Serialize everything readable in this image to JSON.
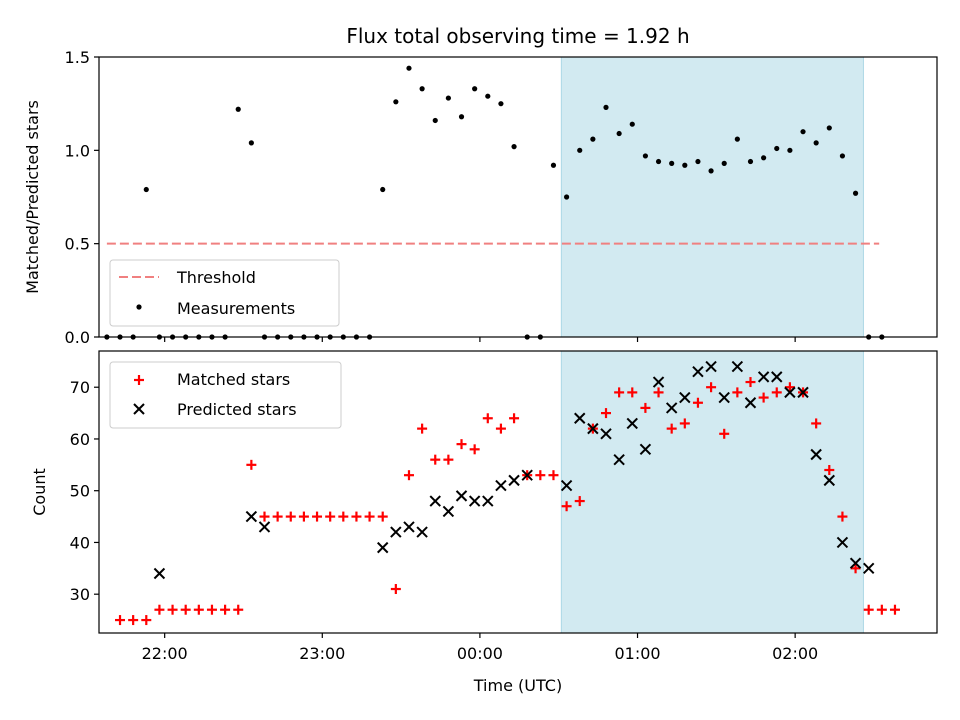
{
  "chart_data": {
    "type": "scatter",
    "title": "Flux total observing time = 1.92 h",
    "xlabel": "Time (UTC)",
    "x_ticks": [
      "22:00",
      "23:00",
      "00:00",
      "01:00",
      "02:00"
    ],
    "highlight_span": {
      "start": "00:31",
      "end": "02:26",
      "color": "#add8e6"
    },
    "panels": [
      {
        "ylabel": "Matched/Predicted stars",
        "ylim": [
          0,
          1.5
        ],
        "y_ticks": [
          "0.0",
          "0.5",
          "1.0",
          "1.5"
        ],
        "threshold": {
          "name": "Threshold",
          "value": 0.5,
          "start": "21:38",
          "end": "02:32",
          "color": "#f08080"
        },
        "legend_position": "lower-left",
        "series": [
          {
            "name": "Measurements",
            "color": "#000000",
            "marker": "dot",
            "x": [
              "21:38",
              "21:43",
              "21:48",
              "21:53",
              "21:58",
              "22:03",
              "22:08",
              "22:13",
              "22:18",
              "22:23",
              "22:28",
              "22:33",
              "22:38",
              "22:43",
              "22:48",
              "22:53",
              "22:58",
              "23:03",
              "23:08",
              "23:13",
              "23:18",
              "23:23",
              "23:28",
              "23:33",
              "23:38",
              "23:43",
              "23:48",
              "23:53",
              "23:58",
              "00:03",
              "00:08",
              "00:13",
              "00:18",
              "00:23",
              "00:28",
              "00:33",
              "00:38",
              "00:43",
              "00:48",
              "00:53",
              "00:58",
              "01:03",
              "01:08",
              "01:13",
              "01:18",
              "01:23",
              "01:28",
              "01:33",
              "01:38",
              "01:43",
              "01:48",
              "01:53",
              "01:58",
              "02:03",
              "02:08",
              "02:13",
              "02:18",
              "02:23",
              "02:28",
              "02:33"
            ],
            "y": [
              0,
              0,
              0,
              0.79,
              0,
              0,
              0,
              0,
              0,
              0,
              1.22,
              1.04,
              0,
              0,
              0,
              0,
              0,
              0,
              0,
              0,
              0,
              0.79,
              1.26,
              1.44,
              1.33,
              1.16,
              1.28,
              1.18,
              1.33,
              1.29,
              1.25,
              1.02,
              0,
              0,
              0.92,
              0.75,
              1.0,
              1.06,
              1.23,
              1.09,
              1.14,
              0.97,
              0.94,
              0.93,
              0.92,
              0.94,
              0.89,
              0.93,
              1.06,
              0.94,
              0.96,
              1.01,
              1.0,
              1.1,
              1.04,
              1.12,
              0.97,
              0.77,
              0,
              0
            ]
          }
        ]
      },
      {
        "ylabel": "Count",
        "ylim": [
          22.5,
          77
        ],
        "y_ticks": [
          "30",
          "40",
          "50",
          "60",
          "70"
        ],
        "legend_position": "upper-left",
        "series": [
          {
            "name": "Matched stars",
            "color": "#ff0000",
            "marker": "plus",
            "x": [
              "21:43",
              "21:48",
              "21:53",
              "21:58",
              "22:03",
              "22:08",
              "22:13",
              "22:18",
              "22:23",
              "22:28",
              "22:33",
              "22:38",
              "22:43",
              "22:48",
              "22:53",
              "22:58",
              "23:03",
              "23:08",
              "23:13",
              "23:18",
              "23:23",
              "23:28",
              "23:33",
              "23:38",
              "23:43",
              "23:48",
              "23:53",
              "23:58",
              "00:03",
              "00:08",
              "00:13",
              "00:18",
              "00:23",
              "00:28",
              "00:33",
              "00:38",
              "00:43",
              "00:48",
              "00:53",
              "00:58",
              "01:03",
              "01:08",
              "01:13",
              "01:18",
              "01:23",
              "01:28",
              "01:33",
              "01:38",
              "01:43",
              "01:48",
              "01:53",
              "01:58",
              "02:03",
              "02:08",
              "02:13",
              "02:18",
              "02:23",
              "02:28",
              "02:33",
              "02:38"
            ],
            "y": [
              25,
              25,
              25,
              27,
              27,
              27,
              27,
              27,
              27,
              27,
              55,
              45,
              45,
              45,
              45,
              45,
              45,
              45,
              45,
              45,
              45,
              31,
              53,
              62,
              56,
              56,
              59,
              58,
              64,
              62,
              64,
              53,
              53,
              53,
              47,
              48,
              62,
              65,
              69,
              69,
              66,
              69,
              62,
              63,
              67,
              70,
              61,
              69,
              71,
              68,
              69,
              70,
              69,
              63,
              54,
              45,
              35,
              27,
              27,
              27
            ]
          },
          {
            "name": "Predicted stars",
            "color": "#000000",
            "marker": "x",
            "x": [
              "21:58",
              "22:33",
              "22:38",
              "23:23",
              "23:28",
              "23:33",
              "23:38",
              "23:43",
              "23:48",
              "23:53",
              "23:58",
              "00:03",
              "00:08",
              "00:13",
              "00:18",
              "00:33",
              "00:38",
              "00:43",
              "00:48",
              "00:53",
              "00:58",
              "01:03",
              "01:08",
              "01:13",
              "01:18",
              "01:23",
              "01:28",
              "01:33",
              "01:38",
              "01:43",
              "01:48",
              "01:53",
              "01:58",
              "02:03",
              "02:08",
              "02:13",
              "02:18",
              "02:23",
              "02:28"
            ],
            "y": [
              34,
              45,
              43,
              39,
              42,
              43,
              42,
              48,
              46,
              49,
              48,
              48,
              51,
              52,
              53,
              51,
              64,
              62,
              61,
              56,
              63,
              58,
              71,
              66,
              68,
              73,
              74,
              68,
              74,
              67,
              72,
              72,
              69,
              69,
              57,
              52,
              40,
              36,
              35
            ]
          }
        ]
      }
    ]
  }
}
